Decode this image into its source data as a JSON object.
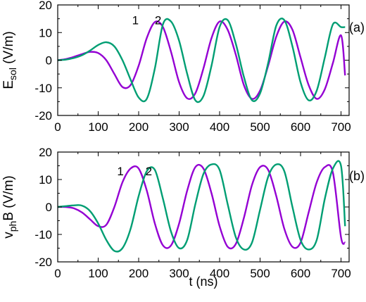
{
  "chart_data": [
    {
      "type": "line",
      "panel_label": "(a)",
      "ylabel_main": "E",
      "ylabel_sub": "sol",
      "ylabel_unit": " (V/m)",
      "xlabel": "",
      "xlim": [
        0,
        720
      ],
      "ylim": [
        -20,
        20
      ],
      "xticks": [
        0,
        100,
        200,
        300,
        400,
        500,
        600,
        700
      ],
      "yticks": [
        -20,
        -10,
        0,
        10,
        20
      ],
      "grid": false,
      "curve_labels": [
        {
          "text": "1",
          "x": 192,
          "y": 13
        },
        {
          "text": "2",
          "x": 248,
          "y": 13
        }
      ],
      "series": [
        {
          "name": "1",
          "color": "#9400d3",
          "x": [
            0,
            20,
            40,
            60,
            80,
            100,
            120,
            140,
            160,
            180,
            200,
            220,
            240,
            260,
            280,
            300,
            320,
            340,
            360,
            380,
            400,
            420,
            440,
            460,
            480,
            500,
            520,
            540,
            560,
            580,
            600,
            620,
            640,
            660,
            680,
            700,
            710
          ],
          "y": [
            0,
            0.4,
            1.2,
            2.2,
            3.0,
            2.6,
            0,
            -5,
            -9.7,
            -9,
            -2,
            8,
            13.8,
            12,
            3,
            -8,
            -13.8,
            -12,
            -3,
            8,
            14,
            11,
            2,
            -9,
            -14,
            -11,
            -2,
            8.5,
            14,
            11,
            1,
            -9,
            -14,
            -10.5,
            -1,
            9,
            -5.5
          ]
        },
        {
          "name": "2",
          "color": "#009e73",
          "x": [
            0,
            20,
            40,
            60,
            80,
            100,
            120,
            140,
            160,
            180,
            200,
            220,
            240,
            260,
            280,
            300,
            320,
            340,
            360,
            380,
            400,
            420,
            440,
            460,
            480,
            500,
            520,
            540,
            560,
            580,
            600,
            620,
            640,
            660,
            680,
            700,
            710
          ],
          "y": [
            0,
            0.2,
            0.8,
            1.8,
            3.5,
            5.5,
            6.5,
            5,
            0,
            -7,
            -13.5,
            -14,
            -3,
            13,
            14,
            7,
            -5,
            -14.5,
            -13,
            -2,
            12,
            14.5,
            6,
            -6,
            -14.5,
            -12,
            -1,
            12.5,
            14.5,
            5,
            -8,
            -14.5,
            -11,
            1,
            13,
            12,
            12
          ]
        }
      ]
    },
    {
      "type": "line",
      "panel_label": "(b)",
      "ylabel_main": "v",
      "ylabel_sub": "ph",
      "ylabel_unit": "B (V/m)",
      "xlabel": "t (ns)",
      "xlim": [
        0,
        720
      ],
      "ylim": [
        -20,
        20
      ],
      "xticks": [
        0,
        100,
        200,
        300,
        400,
        500,
        600,
        700
      ],
      "yticks": [
        -20,
        -10,
        0,
        10,
        20
      ],
      "grid": false,
      "curve_labels": [
        {
          "text": "1",
          "x": 155,
          "y": 11.5
        },
        {
          "text": "2",
          "x": 225,
          "y": 11.5
        }
      ],
      "series": [
        {
          "name": "1",
          "color": "#9400d3",
          "x": [
            0,
            20,
            40,
            60,
            80,
            100,
            120,
            140,
            160,
            180,
            200,
            220,
            240,
            260,
            280,
            300,
            320,
            340,
            360,
            380,
            400,
            420,
            440,
            460,
            480,
            500,
            520,
            540,
            560,
            580,
            600,
            620,
            640,
            660,
            680,
            700,
            710
          ],
          "y": [
            0,
            0,
            -0.5,
            -2,
            -4.5,
            -7,
            -6.5,
            0,
            9,
            14,
            14,
            6,
            -6,
            -14,
            -14,
            -6,
            6,
            14.5,
            14,
            5,
            -7,
            -14.5,
            -13.5,
            -4,
            8,
            14.5,
            13.5,
            4,
            -8,
            -14.5,
            -13,
            -2,
            9,
            14.5,
            12.5,
            -11,
            -13
          ]
        },
        {
          "name": "2",
          "color": "#009e73",
          "x": [
            0,
            20,
            40,
            60,
            80,
            100,
            120,
            140,
            160,
            180,
            200,
            220,
            240,
            260,
            280,
            300,
            320,
            340,
            360,
            380,
            400,
            420,
            440,
            460,
            480,
            500,
            520,
            540,
            560,
            580,
            600,
            620,
            640,
            660,
            680,
            700,
            710
          ],
          "y": [
            0,
            0.3,
            0.6,
            0.5,
            -1.5,
            -6,
            -12,
            -16,
            -15,
            -8,
            4,
            13,
            13.5,
            3,
            -9,
            -15,
            -12,
            1,
            12,
            15.5,
            13.5,
            1,
            -11,
            -15.5,
            -13,
            -1,
            11,
            15.5,
            13,
            0,
            -12,
            -15.5,
            -12,
            3,
            14,
            15,
            -7
          ]
        }
      ]
    }
  ]
}
